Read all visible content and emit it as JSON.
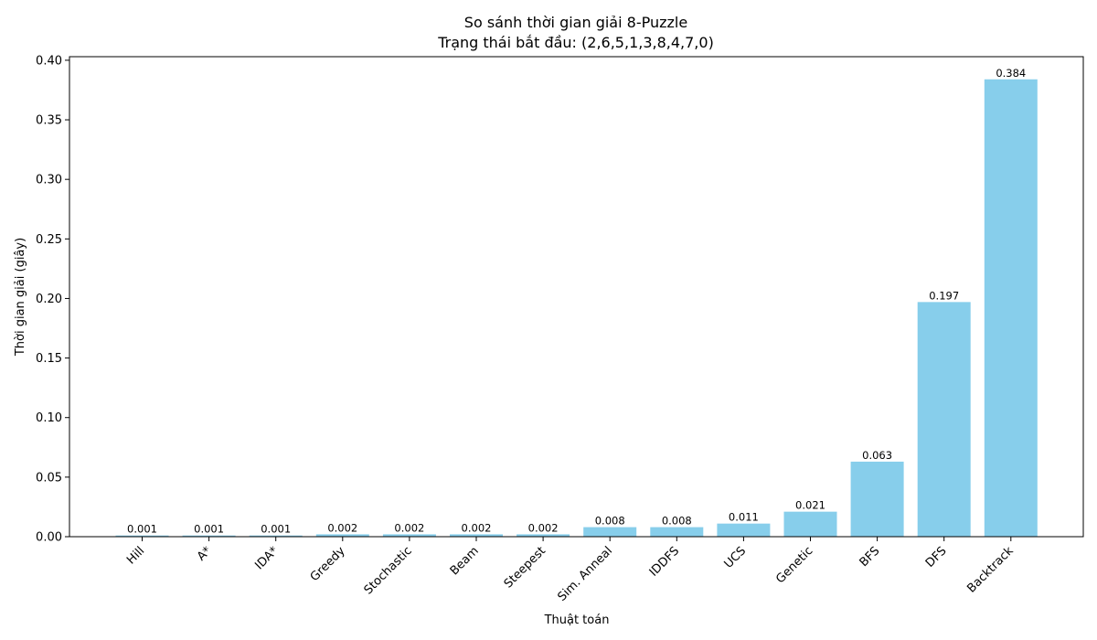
{
  "chart_data": {
    "type": "bar",
    "title": "So sánh thời gian giải 8-Puzzle",
    "subtitle": "Trạng thái bắt đầu: (2,6,5,1,3,8,4,7,0)",
    "xlabel": "Thuật toán",
    "ylabel": "Thời gian giải (giây)",
    "categories": [
      "Hill",
      "A*",
      "IDA*",
      "Greedy",
      "Stochastic",
      "Beam",
      "Steepest",
      "Sim. Anneal",
      "IDDFS",
      "UCS",
      "Genetic",
      "BFS",
      "DFS",
      "Backtrack"
    ],
    "values": [
      0.001,
      0.001,
      0.001,
      0.002,
      0.002,
      0.002,
      0.002,
      0.008,
      0.008,
      0.011,
      0.021,
      0.063,
      0.197,
      0.384
    ],
    "data_labels": [
      "0.001",
      "0.001",
      "0.001",
      "0.002",
      "0.002",
      "0.002",
      "0.002",
      "0.008",
      "0.008",
      "0.011",
      "0.021",
      "0.063",
      "0.197",
      "0.384"
    ],
    "ylim": [
      0,
      0.403
    ],
    "yticks": [
      0.0,
      0.05,
      0.1,
      0.15,
      0.2,
      0.25,
      0.3,
      0.35,
      0.4
    ],
    "ytick_labels": [
      "0.00",
      "0.05",
      "0.10",
      "0.15",
      "0.20",
      "0.25",
      "0.30",
      "0.35",
      "0.40"
    ],
    "bar_color": "#87ceeb",
    "grid": false,
    "legend": "none"
  }
}
